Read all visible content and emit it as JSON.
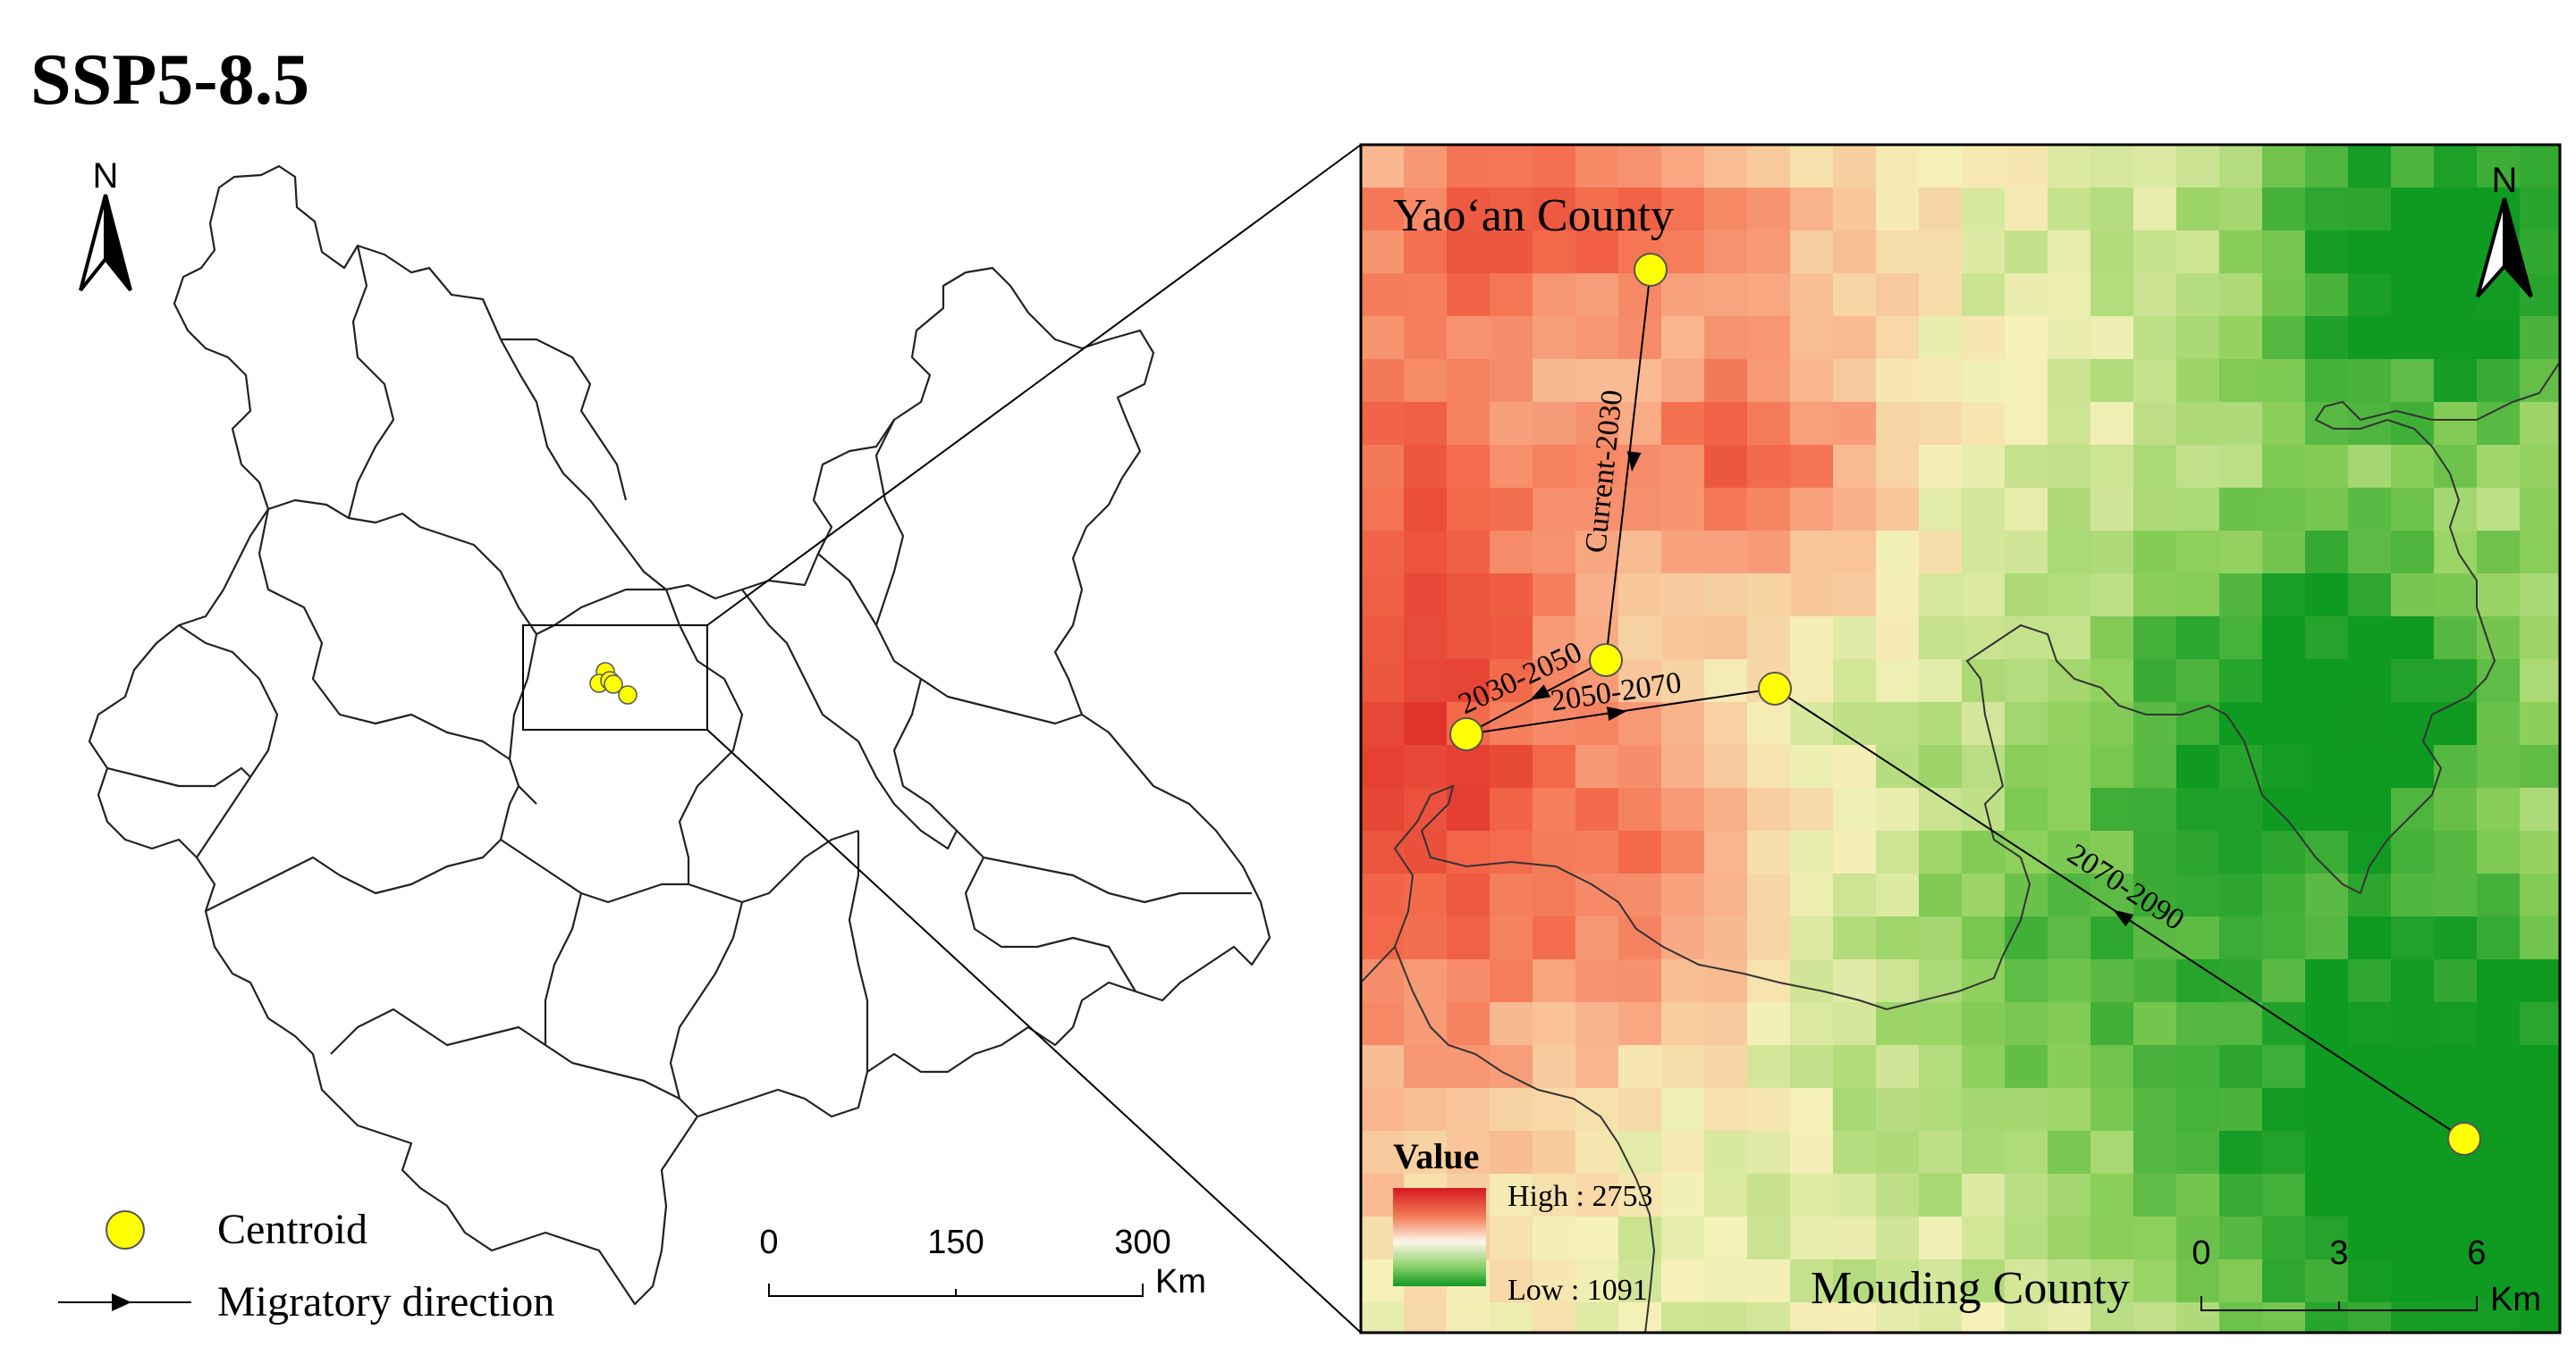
{
  "title": "SSP5-8.5",
  "overview": {
    "north_label": "N",
    "scale_labels": [
      "0",
      "150",
      "300"
    ],
    "scale_unit": "Km"
  },
  "legend": {
    "centroid_label": "Centroid",
    "migration_label": "Migratory direction",
    "centroid_color": "#ffff00"
  },
  "detail": {
    "north_label": "N",
    "county_top": "Yao‘an County",
    "county_bottom": "Mouding County",
    "value_title": "Value",
    "value_high": "High : 2753",
    "value_low": "Low : 1091",
    "scale_labels": [
      "0",
      "3",
      "6"
    ],
    "scale_unit": "Km",
    "migrations": [
      "Current-2030",
      "2030-2050",
      "2050-2070",
      "2070-2090"
    ],
    "ramp_colors": [
      "#0f9a22",
      "#8ccf5a",
      "#f5f1b8",
      "#f9b38c",
      "#f3694a",
      "#d7191c"
    ]
  }
}
